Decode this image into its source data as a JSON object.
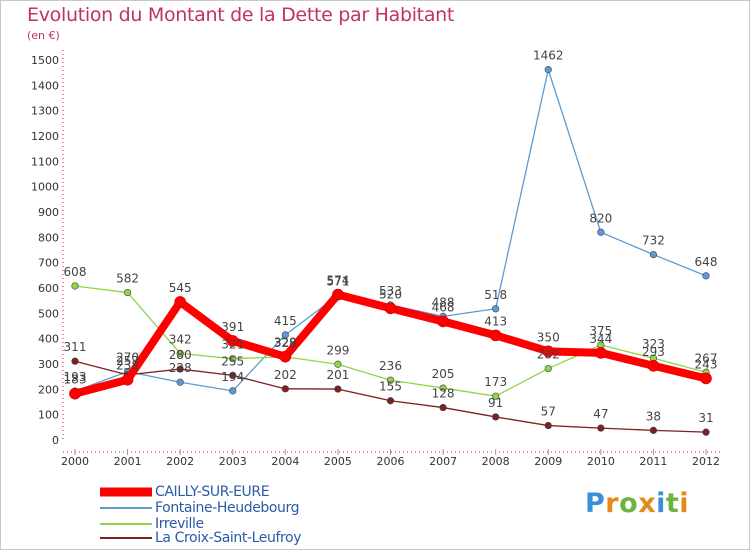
{
  "header": {
    "title": "Evolution du Montant de la Dette par Habitant",
    "unit": "(en €)"
  },
  "logo": {
    "letters": [
      "P",
      "r",
      "o",
      "x",
      "i",
      "t",
      "i"
    ],
    "colors": [
      "#3a8fd8",
      "#e28a1b",
      "#6cb33f",
      "#e28a1b",
      "#3a8fd8",
      "#6cb33f",
      "#e28a1b"
    ]
  },
  "chart_data": {
    "type": "line",
    "title": "Evolution du Montant de la Dette par Habitant",
    "ylabel": "(en €)",
    "xlabel": "",
    "x": [
      "2000",
      "2001",
      "2002",
      "2003",
      "2004",
      "2005",
      "2006",
      "2007",
      "2008",
      "2009",
      "2010",
      "2011",
      "2012"
    ],
    "ylim": [
      0,
      1500
    ],
    "yticks": [
      0,
      100,
      200,
      300,
      400,
      500,
      600,
      700,
      800,
      900,
      1000,
      1100,
      1200,
      1300,
      1400,
      1500
    ],
    "grid": false,
    "legend_position": "bottom-left",
    "series": [
      {
        "name": "CAILLY-SUR-EURE",
        "color": "#ff0000",
        "values": [
          183,
          238,
          545,
          391,
          329,
          574,
          520,
          468,
          413,
          350,
          344,
          293,
          243
        ]
      },
      {
        "name": "Fontaine-Heudebourg",
        "color": "#5b9bd5",
        "values": [
          193,
          270,
          228,
          194,
          415,
          571,
          533,
          488,
          518,
          1462,
          820,
          732,
          648
        ]
      },
      {
        "name": "Irreville",
        "color": "#8fd64a",
        "values": [
          608,
          582,
          342,
          321,
          328,
          299,
          236,
          205,
          173,
          282,
          375,
          323,
          267
        ]
      },
      {
        "name": "La Croix-Saint-Leufroy",
        "color": "#7b2121",
        "values": [
          311,
          257,
          280,
          255,
          202,
          201,
          155,
          128,
          91,
          57,
          47,
          38,
          31
        ]
      }
    ]
  }
}
